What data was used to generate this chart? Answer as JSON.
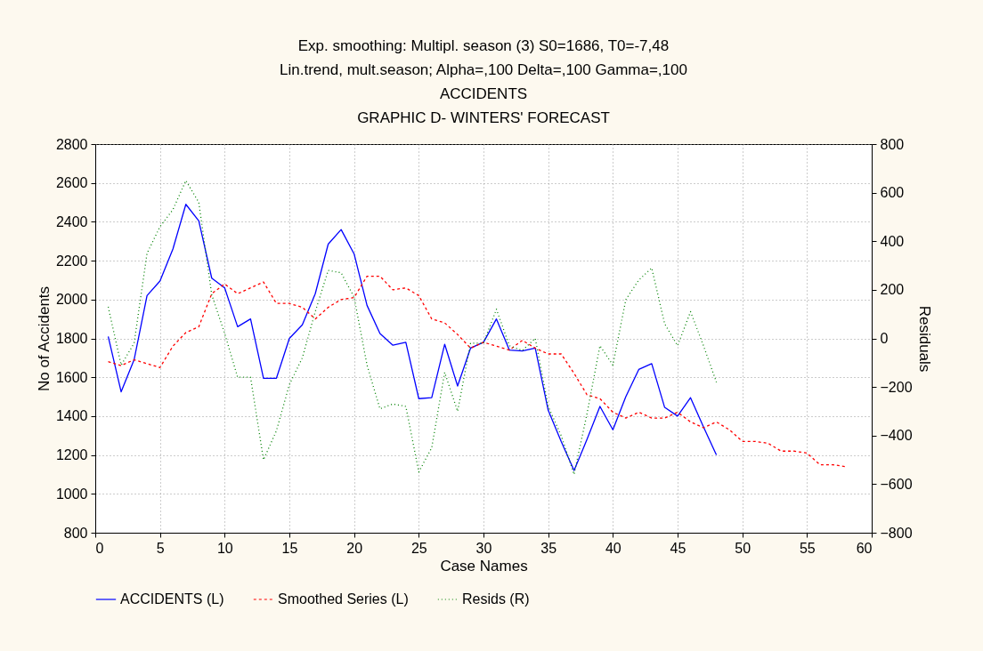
{
  "chart_data": {
    "type": "line",
    "title": "Exp. smoothing: Multipl. season (3) S0=1686, T0=-7,48",
    "subtitle": "Lin.trend, mult.season; Alpha=,100 Delta=,100 Gamma=,100\nACCIDENTS\nGRAPHIC D- WINTERS' FORECAST",
    "xlabel": "Case Names",
    "ylabel": "No of Accidents",
    "y2label": "Residuals",
    "xlim": [
      0,
      60
    ],
    "xticks": [
      0,
      5,
      10,
      15,
      20,
      25,
      30,
      35,
      40,
      45,
      50,
      55,
      60
    ],
    "ylim": [
      800,
      2800
    ],
    "yticks": [
      800,
      1000,
      1200,
      1400,
      1600,
      1800,
      2000,
      2200,
      2400,
      2600,
      2800
    ],
    "y2lim": [
      -800,
      800
    ],
    "y2ticks": [
      -800,
      -600,
      -400,
      -200,
      0,
      200,
      400,
      600,
      800
    ],
    "grid": true,
    "legend": "bottom",
    "marker": "none",
    "series": [
      {
        "name": "ACCIDENTS (L)",
        "color": "#0000ff",
        "line_style": "solid",
        "x": [
          1,
          2,
          3,
          4,
          5,
          6,
          7,
          8,
          9,
          10,
          11,
          12,
          13,
          14,
          15,
          16,
          17,
          18,
          19,
          20,
          21,
          22,
          23,
          24,
          25,
          26,
          27,
          28,
          29,
          30,
          31,
          32,
          33,
          34,
          35,
          36,
          37,
          38,
          39,
          40,
          41,
          42,
          43,
          44,
          45,
          46,
          47,
          48
        ],
        "values": [
          1810,
          1525,
          1690,
          2020,
          2095,
          2260,
          2490,
          2405,
          2110,
          2060,
          1860,
          1900,
          1595,
          1595,
          1800,
          1870,
          2030,
          2285,
          2360,
          2235,
          1970,
          1825,
          1765,
          1780,
          1490,
          1495,
          1770,
          1555,
          1750,
          1780,
          1900,
          1740,
          1735,
          1750,
          1430,
          1270,
          1120,
          1280,
          1450,
          1330,
          1500,
          1640,
          1670,
          1445,
          1400,
          1495,
          1345,
          1200
        ]
      },
      {
        "name": "Smoothed Series (L)",
        "color": "#ff0000",
        "line_style": "dashed",
        "x": [
          1,
          2,
          3,
          4,
          5,
          6,
          7,
          8,
          9,
          10,
          11,
          12,
          13,
          14,
          15,
          16,
          17,
          18,
          19,
          20,
          21,
          22,
          23,
          24,
          25,
          26,
          27,
          28,
          29,
          30,
          31,
          32,
          33,
          34,
          35,
          36,
          37,
          38,
          39,
          40,
          41,
          42,
          43,
          44,
          45,
          46,
          47,
          48,
          49,
          50,
          51,
          52,
          53,
          54,
          55,
          56,
          57,
          58
        ],
        "values": [
          1680,
          1660,
          1690,
          1670,
          1650,
          1760,
          1830,
          1860,
          2030,
          2080,
          2030,
          2060,
          2090,
          1980,
          1980,
          1960,
          1900,
          1960,
          2000,
          2010,
          2120,
          2120,
          2050,
          2060,
          2020,
          1900,
          1880,
          1820,
          1750,
          1780,
          1760,
          1740,
          1790,
          1750,
          1720,
          1720,
          1620,
          1510,
          1490,
          1420,
          1390,
          1420,
          1390,
          1390,
          1420,
          1370,
          1340,
          1370,
          1330,
          1270,
          1270,
          1260,
          1220,
          1220,
          1210,
          1150,
          1150,
          1140
        ]
      },
      {
        "name": "Resids (R)",
        "color": "#008000",
        "line_style": "dotted",
        "axis": "y2",
        "x": [
          1,
          2,
          3,
          4,
          5,
          6,
          7,
          8,
          9,
          10,
          11,
          12,
          13,
          14,
          15,
          16,
          17,
          18,
          19,
          20,
          21,
          22,
          23,
          24,
          25,
          26,
          27,
          28,
          29,
          30,
          31,
          32,
          33,
          34,
          35,
          36,
          37,
          38,
          39,
          40,
          41,
          42,
          43,
          44,
          45,
          46,
          47,
          48
        ],
        "values": [
          130,
          -110,
          -20,
          350,
          460,
          530,
          650,
          560,
          180,
          20,
          -160,
          -160,
          -500,
          -380,
          -190,
          -80,
          110,
          280,
          270,
          170,
          -110,
          -290,
          -270,
          -280,
          -550,
          -450,
          -140,
          -300,
          -20,
          -20,
          120,
          -30,
          -50,
          0,
          -280,
          -400,
          -560,
          -310,
          -30,
          -110,
          160,
          240,
          290,
          60,
          -30,
          110,
          -30,
          -180
        ]
      }
    ]
  }
}
